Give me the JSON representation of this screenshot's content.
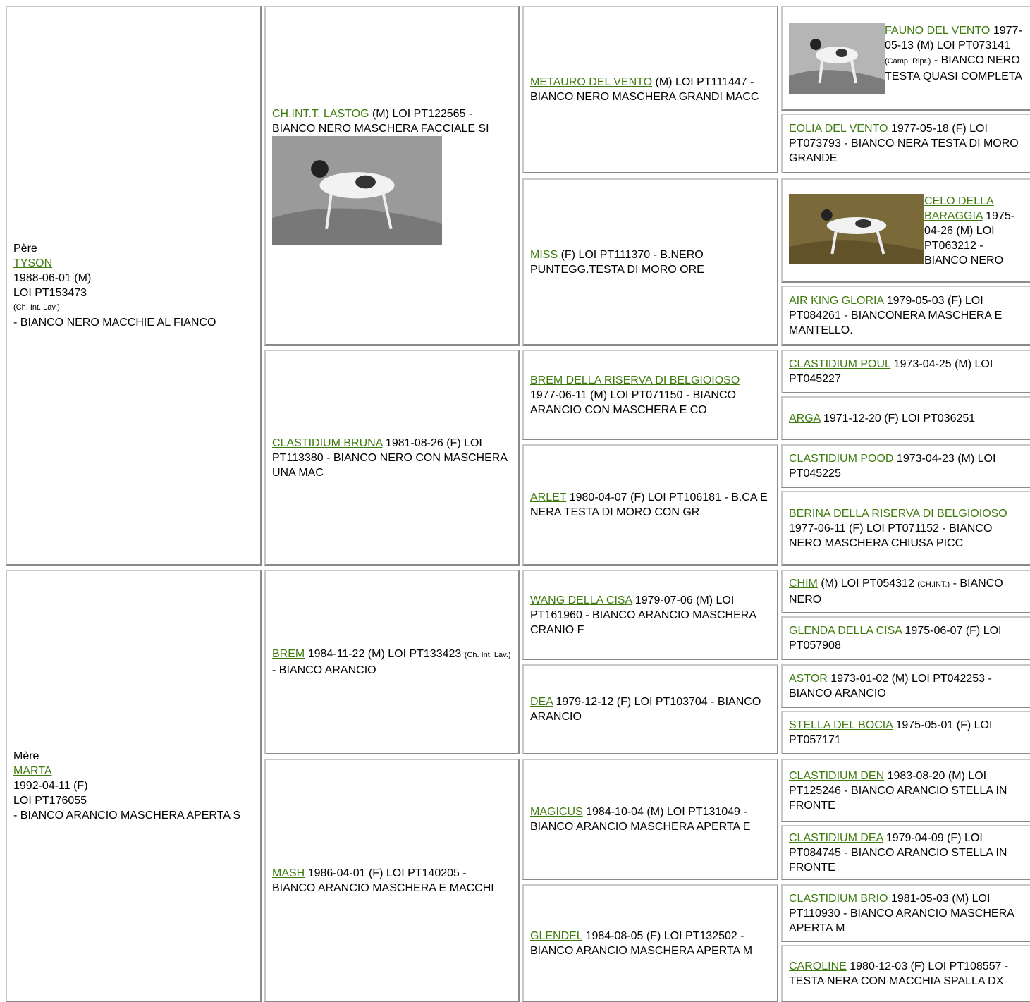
{
  "generations": [
    [
      {
        "label": "Père",
        "name": "TYSON",
        "lines": [
          "1988-06-01 (M)",
          "LOI PT153473"
        ],
        "note": "(Ch. Int. Lav.)",
        "rest": "- BIANCO NERO MACCHIE AL FIANCO"
      },
      {
        "label": "Mère",
        "name": "MARTA",
        "lines": [
          "1992-04-11 (F)",
          "LOI PT176055"
        ],
        "rest": "- BIANCO ARANCIO MASCHERA APERTA S"
      }
    ],
    [
      {
        "name": "CH.INT.T. LASTOG",
        "info": "(M) LOI PT122565 - BIANCO NERO MASCHERA FACCIALE SI"
      },
      {
        "name": "CLASTIDIUM BRUNA",
        "info": "1981-08-26 (F) LOI PT113380 - BIANCO NERO CON MASCHERA UNA MAC"
      },
      {
        "name": "BREM",
        "info": "1984-11-22 (M) LOI PT133423",
        "note": "(Ch. Int. Lav.)",
        "rest": "- BIANCO ARANCIO"
      },
      {
        "name": "MASH",
        "info": "1986-04-01 (F) LOI PT140205 - BIANCO ARANCIO MASCHERA E MACCHI"
      }
    ],
    [
      {
        "name": "METAURO DEL VENTO",
        "info": "(M) LOI PT111447 - BIANCO NERO MASCHERA GRANDI MACC"
      },
      {
        "name": "MISS",
        "info": "(F) LOI PT111370 - B.NERO PUNTEGG.TESTA DI MORO ORE"
      },
      {
        "name": "BREM DELLA RISERVA DI BELGIOIOSO",
        "info": "1977-06-11 (M) LOI PT071150 - BIANCO ARANCIO CON MASCHERA E CO"
      },
      {
        "name": "ARLET",
        "info": "1980-04-07 (F) LOI PT106181 - B.CA E NERA TESTA DI MORO CON GR"
      },
      {
        "name": "WANG DELLA CISA",
        "info": "1979-07-06 (M) LOI PT161960 - BIANCO ARANCIO MASCHERA CRANIO F"
      },
      {
        "name": "DEA",
        "info": "1979-12-12 (F) LOI PT103704 - BIANCO ARANCIO"
      },
      {
        "name": "MAGICUS",
        "info": "1984-10-04 (M) LOI PT131049 - BIANCO ARANCIO MASCHERA APERTA E"
      },
      {
        "name": "GLENDEL",
        "info": "1984-08-05 (F) LOI PT132502 - BIANCO ARANCIO MASCHERA APERTA M"
      }
    ],
    [
      {
        "name": "FAUNO DEL VENTO",
        "info": "1977-05-13 (M) LOI PT073141",
        "note": "(Camp. Ripr.)",
        "rest": "- BIANCO NERO TESTA QUASI COMPLETA"
      },
      {
        "name": "EOLIA DEL VENTO",
        "info": "1977-05-18 (F) LOI PT073793 - BIANCO NERA TESTA DI MORO GRANDE"
      },
      {
        "name": "CELO DELLA BARAGGIA",
        "info": "1975-04-26 (M) LOI PT063212 - BIANCO NERO"
      },
      {
        "name": "AIR KING GLORIA",
        "info": "1979-05-03 (F) LOI PT084261 - BIANCONERA MASCHERA E MANTELLO."
      },
      {
        "name": "CLASTIDIUM POUL",
        "info": "1973-04-25 (M) LOI PT045227"
      },
      {
        "name": "ARGA",
        "info": "1971-12-20 (F) LOI PT036251"
      },
      {
        "name": "CLASTIDIUM POOD",
        "info": "1973-04-23 (M) LOI PT045225"
      },
      {
        "name": "BERINA DELLA RISERVA DI BELGIOIOSO",
        "info": "1977-06-11 (F) LOI PT071152 - BIANCO NERO MASCHERA CHIUSA PICC"
      },
      {
        "name": "CHIM",
        "info": "(M) LOI PT054312",
        "note": "(CH.INT.)",
        "rest": "- BIANCO NERO"
      },
      {
        "name": "GLENDA DELLA CISA",
        "info": "1975-06-07 (F) LOI PT057908"
      },
      {
        "name": "ASTOR",
        "info": "1973-01-02 (M) LOI PT042253 - BIANCO ARANCIO"
      },
      {
        "name": "STELLA DEL BOCIA",
        "info": "1975-05-01 (F) LOI PT057171"
      },
      {
        "name": "CLASTIDIUM DEN",
        "info": "1983-08-20 (M) LOI PT125246 - BIANCO ARANCIO STELLA IN FRONTE"
      },
      {
        "name": "CLASTIDIUM DEA",
        "info": "1979-04-09 (F) LOI PT084745 - BIANCO ARANCIO STELLA IN FRONTE"
      },
      {
        "name": "CLASTIDIUM BRIO",
        "info": "1981-05-03 (M) LOI PT110930 - BIANCO ARANCIO MASCHERA APERTA M"
      },
      {
        "name": "CAROLINE",
        "info": "1980-12-03 (F) LOI PT108557 - TESTA NERA CON MACCHIA SPALLA DX"
      }
    ]
  ]
}
